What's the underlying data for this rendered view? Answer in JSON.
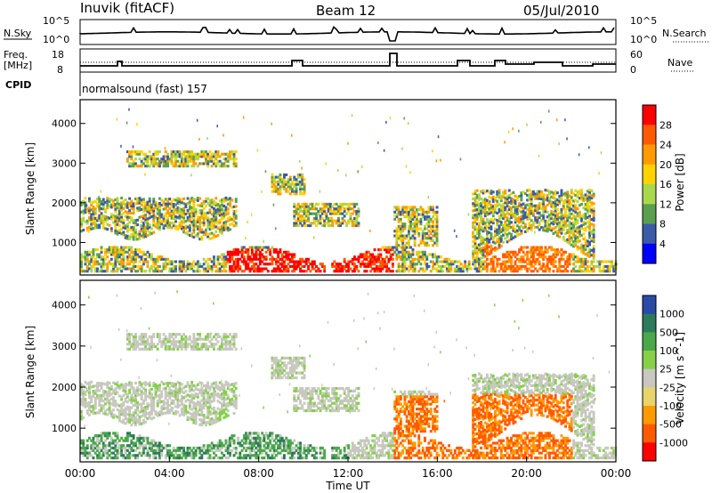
{
  "header": {
    "station": "Inuvik (fitACF)",
    "beam": "Beam 12",
    "date": "05/Jul/2010"
  },
  "panels": {
    "nsky": {
      "left_label": "N.Sky",
      "right_label": "N.Search",
      "left_ticks": [
        "10^5",
        "10^0"
      ],
      "right_ticks": [
        "10^5",
        "10^0"
      ]
    },
    "freq": {
      "left_label_line1": "Freq.",
      "left_label_line2": "[MHz]",
      "right_label": "Nave",
      "left_ticks": [
        "18",
        "8"
      ],
      "right_ticks": [
        "60",
        "0"
      ]
    },
    "cpid": {
      "label": "CPID",
      "text": "normalsound (fast) 157"
    }
  },
  "chart_data": [
    {
      "type": "heatmap",
      "quantity": "Power",
      "ylabel": "Slant Range [km]",
      "xlabel": "",
      "colorbar_label": "Power [dB]",
      "colorbar_ticks": [
        "28",
        "24",
        "20",
        "16",
        "12",
        "8",
        "4"
      ],
      "colorbar_colors": [
        "#ff0000",
        "#ff5a00",
        "#ff9a00",
        "#ffd200",
        "#a8d84c",
        "#5aa04c",
        "#3c5aa8",
        "#0000ff"
      ],
      "y_ticks": [
        "4000",
        "3000",
        "2000",
        "1000"
      ],
      "ylim": [
        180,
        4600
      ],
      "xlim": [
        "00:00",
        "24:00"
      ]
    },
    {
      "type": "heatmap",
      "quantity": "Velocity",
      "ylabel": "Slant Range [km]",
      "xlabel": "Time UT",
      "colorbar_label": "Velocity [m s^-1]",
      "colorbar_ticks": [
        "1000",
        "500",
        "100",
        "25",
        "-25",
        "-100",
        "-500",
        "-1000"
      ],
      "colorbar_colors": [
        "#2a4aa8",
        "#2e7a5c",
        "#4aa84a",
        "#86d04a",
        "#c8c8c0",
        "#e8d46a",
        "#ff9a00",
        "#ff5a00",
        "#ff0000"
      ],
      "y_ticks": [
        "4000",
        "3000",
        "2000",
        "1000"
      ],
      "ylim": [
        180,
        4600
      ],
      "xlim": [
        "00:00",
        "24:00"
      ],
      "x_ticks": [
        "00:00",
        "04:00",
        "08:00",
        "12:00",
        "16:00",
        "20:00",
        "00:00"
      ]
    }
  ]
}
